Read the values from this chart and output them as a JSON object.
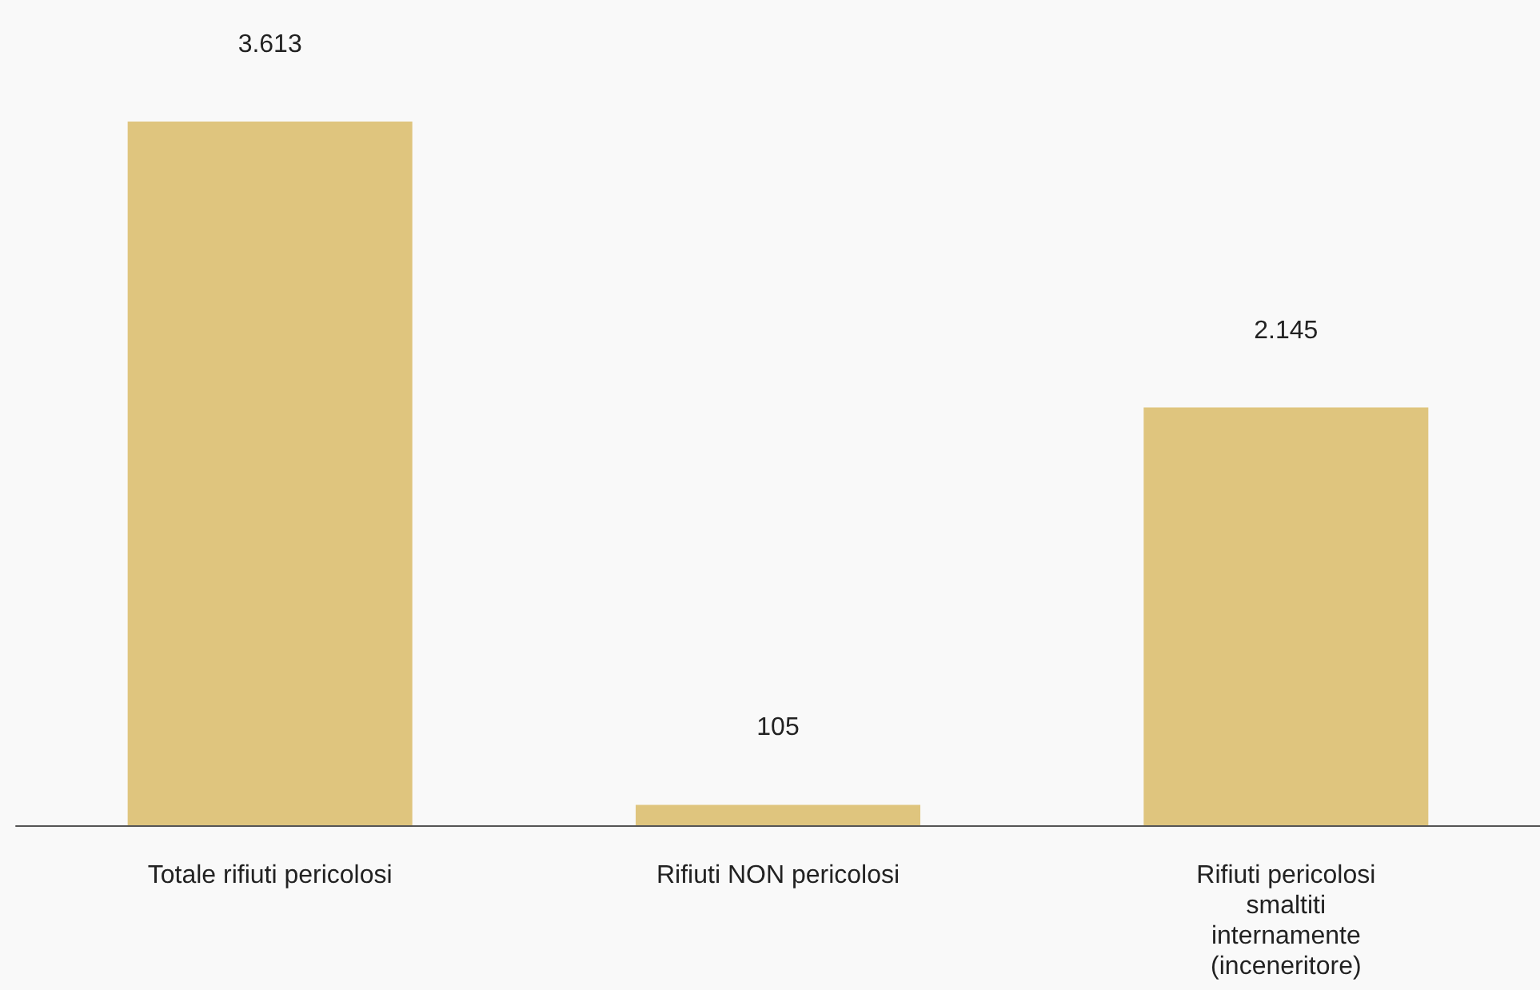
{
  "chart_data": {
    "type": "bar",
    "categories": [
      "Totale rifiuti pericolosi",
      "Rifiuti NON pericolosi",
      "Rifiuti pericolosi\nsmaltiti\ninternamente\n(inceneritore)"
    ],
    "values": [
      3613,
      105,
      2145
    ],
    "value_labels": [
      "3.613",
      "105",
      "2.145"
    ],
    "color": "#dfc57e"
  }
}
